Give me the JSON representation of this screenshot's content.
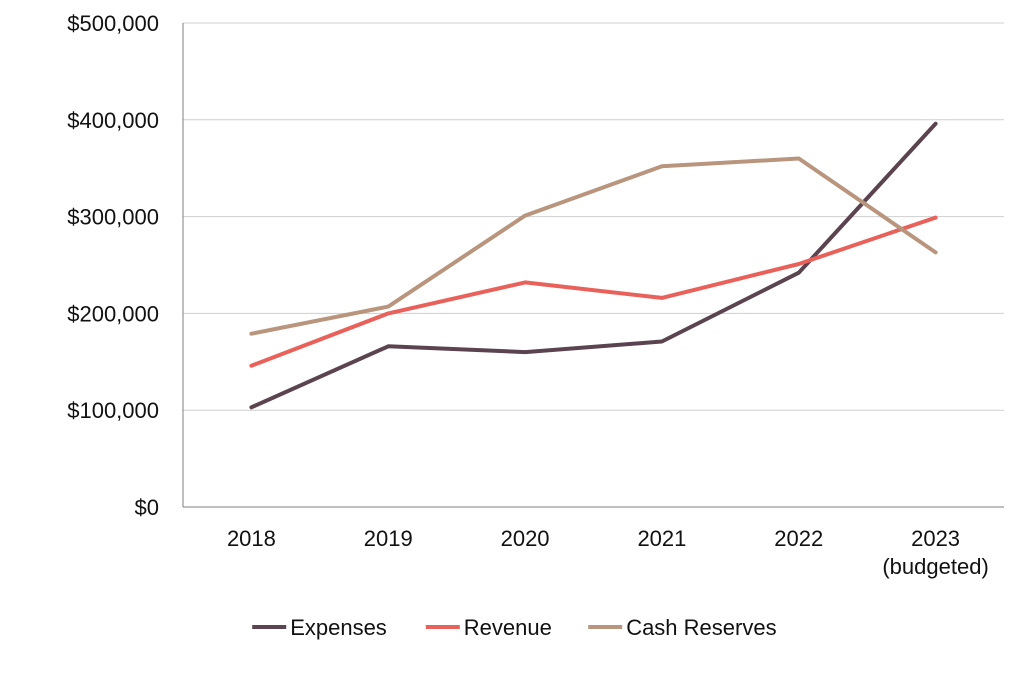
{
  "chart_data": {
    "type": "line",
    "categories": [
      "2018",
      "2019",
      "2020",
      "2021",
      "2022",
      "2023\n(budgeted)"
    ],
    "series": [
      {
        "name": "Expenses",
        "color": "#5b4350",
        "values": [
          103000,
          166000,
          160000,
          171000,
          242000,
          396000
        ]
      },
      {
        "name": "Revenue",
        "color": "#e8615a",
        "values": [
          146000,
          200000,
          232000,
          216000,
          251000,
          299000
        ]
      },
      {
        "name": "Cash Reserves",
        "color": "#b9957d",
        "values": [
          179000,
          207000,
          301000,
          352000,
          360000,
          263000
        ]
      }
    ],
    "y_ticks": [
      "$0",
      "$100,000",
      "$200,000",
      "$300,000",
      "$400,000",
      "$500,000"
    ],
    "ylim": [
      0,
      500000
    ],
    "grid": true,
    "legend": "bottom"
  }
}
